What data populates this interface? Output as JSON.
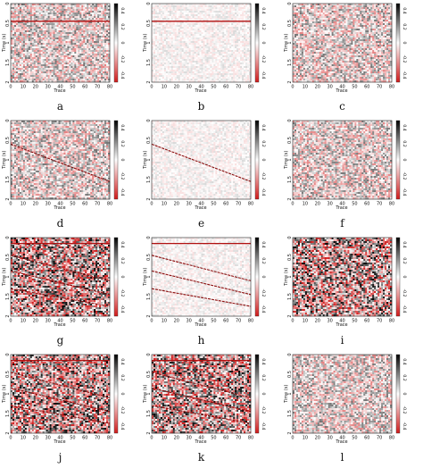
{
  "figure": {
    "panels": [
      {
        "label": "a",
        "noise": "mid",
        "events": [
          {
            "type": "flat",
            "t0": 0.45
          }
        ]
      },
      {
        "label": "b",
        "noise": "light",
        "events": [
          {
            "type": "flat",
            "t0": 0.45
          }
        ]
      },
      {
        "label": "c",
        "noise": "mid",
        "events": []
      },
      {
        "label": "d",
        "noise": "mid",
        "events": [
          {
            "type": "dip",
            "t0": 0.6,
            "t1": 1.55
          }
        ]
      },
      {
        "label": "e",
        "noise": "light",
        "events": [
          {
            "type": "dip",
            "t0": 0.6,
            "t1": 1.55
          }
        ]
      },
      {
        "label": "f",
        "noise": "mid",
        "events": []
      },
      {
        "label": "g",
        "noise": "heavy",
        "events": [
          {
            "type": "flat",
            "t0": 0.15
          },
          {
            "type": "dip",
            "t0": 0.45,
            "t1": 1.1
          },
          {
            "type": "dip",
            "t0": 0.85,
            "t1": 1.45
          },
          {
            "type": "dip",
            "t0": 1.3,
            "t1": 1.75
          }
        ]
      },
      {
        "label": "h",
        "noise": "light",
        "events": [
          {
            "type": "flat",
            "t0": 0.15
          },
          {
            "type": "dip",
            "t0": 0.45,
            "t1": 1.1
          },
          {
            "type": "dip",
            "t0": 0.85,
            "t1": 1.45
          },
          {
            "type": "dip",
            "t0": 1.3,
            "t1": 1.75
          }
        ]
      },
      {
        "label": "i",
        "noise": "heavy",
        "events": []
      },
      {
        "label": "j",
        "noise": "heavy",
        "events": [
          {
            "type": "flat",
            "t0": 0.15
          },
          {
            "type": "dip",
            "t0": 0.45,
            "t1": 1.1
          },
          {
            "type": "dip",
            "t0": 0.85,
            "t1": 1.45
          },
          {
            "type": "dip",
            "t0": 1.3,
            "t1": 1.75
          }
        ]
      },
      {
        "label": "k",
        "noise": "heavy",
        "events": [
          {
            "type": "flat",
            "t0": 0.15
          },
          {
            "type": "dip",
            "t0": 0.45,
            "t1": 1.1
          },
          {
            "type": "dip",
            "t0": 0.85,
            "t1": 1.45
          },
          {
            "type": "dip",
            "t0": 1.3,
            "t1": 1.75
          }
        ]
      },
      {
        "label": "l",
        "noise": "mid",
        "events": []
      }
    ],
    "x_axis": {
      "label": "Trace",
      "ticks": [
        "0",
        "10",
        "20",
        "30",
        "40",
        "50",
        "60",
        "70",
        "80"
      ]
    },
    "y_axis": {
      "label": "Time (s)",
      "ticks": [
        "0",
        "0.5",
        "1",
        "1.5",
        "2"
      ]
    },
    "colorbar": {
      "ticks": [
        "0.4",
        "0.2",
        "0",
        "-0.2",
        "-0.4"
      ]
    },
    "colors": {
      "positive": "#000000",
      "zero": "#ffffff",
      "negative": "#d11b1b"
    }
  }
}
